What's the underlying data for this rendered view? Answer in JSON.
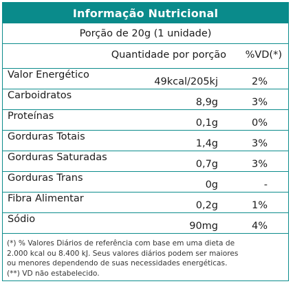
{
  "title": "Informação Nutricional",
  "portion": "Porção de 20g (1 unidade)",
  "headers": {
    "quantity": "Quantidade por porção",
    "vd": "%VD(*)"
  },
  "rows": [
    {
      "name": "Valor Energético",
      "qty": "49kcal/205kj",
      "vd": "2%"
    },
    {
      "name": "Carboidratos",
      "qty": "8,9g",
      "vd": "3%"
    },
    {
      "name": "Proteínas",
      "qty": "0,1g",
      "vd": "0%"
    },
    {
      "name": "Gorduras Totais",
      "qty": "1,4g",
      "vd": "3%"
    },
    {
      "name": "Gorduras Saturadas",
      "qty": "0,7g",
      "vd": "3%"
    },
    {
      "name": "Gorduras Trans",
      "qty": "0g",
      "vd": "-"
    },
    {
      "name": "Fibra Alimentar",
      "qty": "0,2g",
      "vd": "1%"
    },
    {
      "name": "Sódio",
      "qty": "90mg",
      "vd": "4%"
    }
  ],
  "footnote": {
    "line1": "(*) % Valores Diários de referência com base em uma dieta de",
    "line2": "2.000 kcal ou 8.400 kJ. Seus valores diários podem ser maiores",
    "line3": "ou menores dependendo de suas necessidades energéticas.",
    "line4": "(**) VD não estabelecido."
  },
  "colors": {
    "accent": "#0a8b8b",
    "title_text": "#ffffff"
  }
}
